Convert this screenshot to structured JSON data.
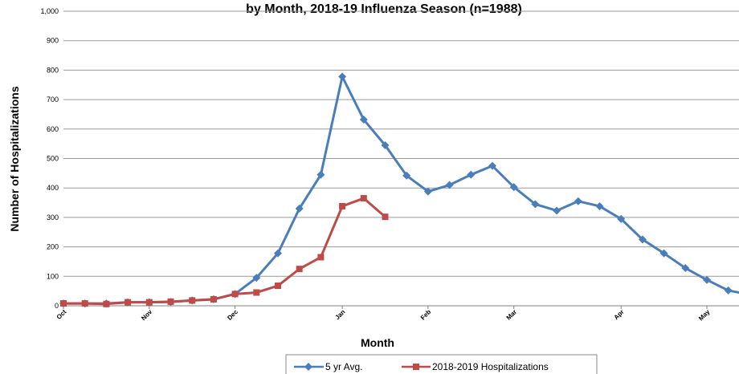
{
  "chart_data": {
    "type": "line",
    "title": "by Month, 2018-19 Influenza Season (n=1988)",
    "xlabel": "Month",
    "ylabel": "Number of Hospitalizations",
    "ylim": [
      0,
      1000
    ],
    "yticks": [
      "0",
      "100",
      "200",
      "300",
      "400",
      "500",
      "600",
      "700",
      "800",
      "900",
      "1,000"
    ],
    "xticks": [
      "Oct",
      "Nov",
      "Dec",
      "Jan",
      "Feb",
      "Mar",
      "Apr",
      "May"
    ],
    "grid": "horizontal",
    "legend": "bottom",
    "series": [
      {
        "name": "5 yr Avg.",
        "color": "#4a7ebb",
        "marker": "diamond",
        "values": [
          8,
          8,
          8,
          12,
          12,
          13,
          18,
          22,
          40,
          95,
          178,
          330,
          445,
          778,
          632,
          545,
          442,
          388,
          410,
          445,
          475,
          403,
          345,
          323,
          355,
          338,
          295,
          225,
          178,
          128,
          88,
          52,
          38
        ]
      },
      {
        "name": "2018-2019 Hospitalizations",
        "color": "#be4b48",
        "marker": "square",
        "values": [
          8,
          8,
          6,
          12,
          12,
          14,
          18,
          22,
          40,
          45,
          68,
          125,
          165,
          338,
          365,
          302
        ]
      }
    ]
  }
}
